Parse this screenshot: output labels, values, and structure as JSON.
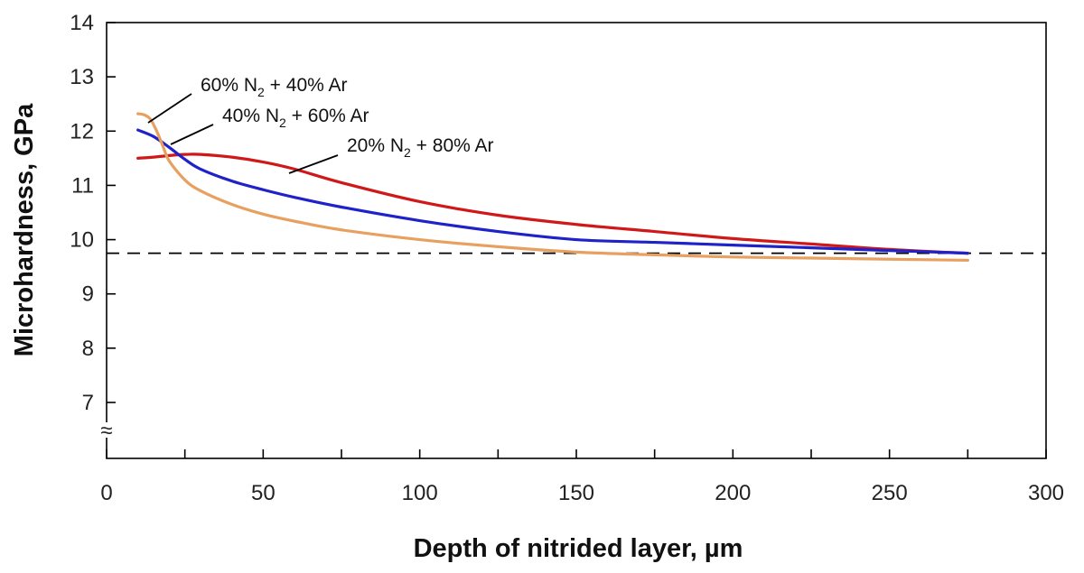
{
  "chart_data": {
    "type": "line",
    "xlabel": "Depth of nitrided layer, µm",
    "ylabel": "Microhardness, GPa",
    "xlim": [
      0,
      300
    ],
    "ylim": [
      6,
      14
    ],
    "xticks": [
      "0",
      "50",
      "100",
      "150",
      "200",
      "250",
      "300"
    ],
    "yticks": [
      "7",
      "8",
      "9",
      "10",
      "11",
      "12",
      "13",
      "14"
    ],
    "axis_break_symbol": "≈",
    "grid": false,
    "reference_line": {
      "y": 9.75,
      "style": "dashed"
    },
    "series": [
      {
        "name": "60% N2 + 40% Ar",
        "color": "#E8A060",
        "x": [
          10,
          12,
          14,
          16,
          18,
          20,
          25,
          30,
          40,
          50,
          60,
          75,
          100,
          125,
          150,
          175,
          200,
          225,
          250,
          275
        ],
        "y": [
          12.32,
          12.3,
          12.22,
          12.0,
          11.72,
          11.45,
          11.1,
          10.9,
          10.65,
          10.47,
          10.34,
          10.18,
          10.0,
          9.87,
          9.77,
          9.72,
          9.68,
          9.66,
          9.64,
          9.62
        ]
      },
      {
        "name": "40% N2 + 60% Ar",
        "color": "#1E22C8",
        "x": [
          10,
          15,
          20,
          25,
          30,
          40,
          50,
          60,
          75,
          100,
          125,
          150,
          175,
          200,
          225,
          250,
          275
        ],
        "y": [
          12.02,
          11.9,
          11.7,
          11.48,
          11.3,
          11.08,
          10.92,
          10.78,
          10.6,
          10.35,
          10.15,
          10.0,
          9.95,
          9.9,
          9.85,
          9.8,
          9.75
        ]
      },
      {
        "name": "20% N2 + 80% Ar",
        "color": "#D01818",
        "x": [
          10,
          15,
          20,
          25,
          30,
          40,
          50,
          60,
          75,
          100,
          125,
          150,
          175,
          200,
          225,
          250,
          275
        ],
        "y": [
          11.5,
          11.52,
          11.55,
          11.57,
          11.57,
          11.52,
          11.43,
          11.3,
          11.05,
          10.7,
          10.45,
          10.28,
          10.15,
          10.02,
          9.92,
          9.82,
          9.75
        ]
      }
    ],
    "annotations": [
      {
        "text": "60% N",
        "sub": "2",
        "tail": "  + 40% Ar",
        "series_index": 0
      },
      {
        "text": "40% N",
        "sub": "2",
        "tail": "  + 60% Ar",
        "series_index": 1
      },
      {
        "text": "20% N",
        "sub": "2",
        "tail": "  + 80% Ar",
        "series_index": 2
      }
    ]
  }
}
